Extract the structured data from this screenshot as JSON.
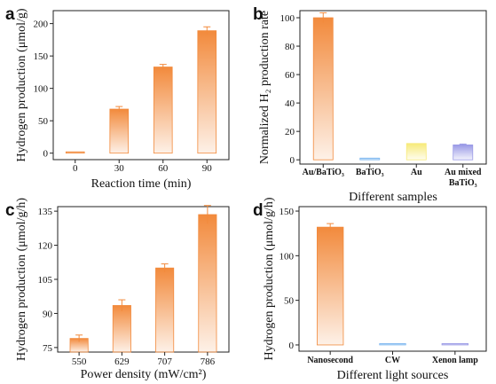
{
  "chart_data": [
    {
      "panel": "a",
      "type": "bar",
      "xlabel": "Reaction time (min)",
      "ylabel": "Hydrogen production (μmol/g)",
      "ylim": [
        -10,
        220
      ],
      "yticks": [
        "0",
        "50",
        "100",
        "150",
        "200"
      ],
      "categories": [
        "0",
        "30",
        "60",
        "90"
      ],
      "values": [
        1,
        68,
        133,
        189
      ],
      "errors": [
        0,
        4,
        4,
        6
      ],
      "grid": false
    },
    {
      "panel": "b",
      "type": "bar",
      "xlabel": "Different samples",
      "ylabel": "Normalized H₂ production rate",
      "ylim": [
        -3,
        105
      ],
      "yticks": [
        "0",
        "20",
        "40",
        "60",
        "80",
        "100"
      ],
      "categories": [
        "Au/BaTiO₃",
        "BaTiO₃",
        "Au",
        "Au mixed|BaTiO₃"
      ],
      "values": [
        100,
        1.2,
        11.5,
        10.5
      ],
      "errors": [
        3.5,
        0,
        0,
        0.6
      ],
      "colors": [
        "#f28a3c",
        "#7fb8f0",
        "#f7ea7a",
        "#9a9ae6"
      ],
      "grid": false
    },
    {
      "panel": "c",
      "type": "bar",
      "xlabel": "Power density (mW/cm²)",
      "ylabel": "Hydrogen production (μmol/g/h)",
      "ylim": [
        73,
        137
      ],
      "yticks": [
        "75",
        "90",
        "105",
        "120",
        "135"
      ],
      "categories": [
        "550",
        "629",
        "707",
        "786"
      ],
      "values": [
        79,
        93.5,
        110,
        133.5
      ],
      "errors": [
        1.5,
        2.5,
        1.8,
        4
      ],
      "grid": false
    },
    {
      "panel": "d",
      "type": "bar",
      "xlabel": "Different light sources",
      "ylabel": "Hydrogen production (μmol/g/h)",
      "ylim": [
        -7,
        155
      ],
      "yticks": [
        "0",
        "50",
        "100",
        "150"
      ],
      "categories": [
        "Nanosecond",
        "CW",
        "Xenon lamp"
      ],
      "values": [
        132,
        1.5,
        1.5
      ],
      "errors": [
        4,
        0,
        0
      ],
      "colors": [
        "#f28a3c",
        "#7fb8f0",
        "#9a9ae6"
      ],
      "grid": false
    }
  ]
}
